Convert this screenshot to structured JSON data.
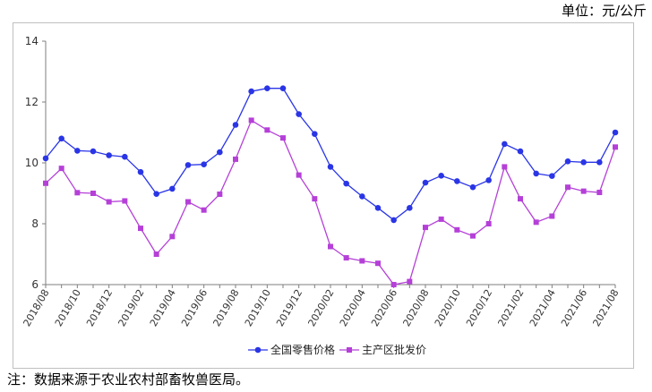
{
  "unit_label": "单位：元/公斤",
  "footnote": "注：数据来源于农业农村部畜牧兽医局。",
  "colors": {
    "retail": "#2a35e6",
    "wholesale": "#b540d8",
    "axis": "#7f7f7f"
  },
  "chart_data": {
    "type": "line",
    "title": "",
    "xlabel": "",
    "ylabel": "",
    "ylim": [
      6,
      14
    ],
    "yticks": [
      6,
      8,
      10,
      12,
      14
    ],
    "grid": false,
    "legend_position": "bottom",
    "x": [
      "2018/08",
      "2018/09",
      "2018/10",
      "2018/11",
      "2018/12",
      "2019/01",
      "2019/02",
      "2019/03",
      "2019/04",
      "2019/05",
      "2019/06",
      "2019/07",
      "2019/08",
      "2019/09",
      "2019/10",
      "2019/11",
      "2019/12",
      "2020/01",
      "2020/02",
      "2020/03",
      "2020/04",
      "2020/05",
      "2020/06",
      "2020/07",
      "2020/08",
      "2020/09",
      "2020/10",
      "2020/11",
      "2020/12",
      "2021/01",
      "2021/02",
      "2021/03",
      "2021/04",
      "2021/05",
      "2021/06",
      "2021/07",
      "2021/08"
    ],
    "tick_labels": [
      "2018/08",
      "2018/10",
      "2018/12",
      "2019/02",
      "2019/04",
      "2019/06",
      "2019/08",
      "2019/10",
      "2019/12",
      "2020/02",
      "2020/04",
      "2020/06",
      "2020/08",
      "2020/10",
      "2020/12",
      "2021/02",
      "2021/04",
      "2021/06",
      "2021/08"
    ],
    "series": [
      {
        "name": "全国零售价格",
        "color": "#2a35e6",
        "marker": "circle",
        "values": [
          10.15,
          10.8,
          10.4,
          10.38,
          10.25,
          10.2,
          9.7,
          8.98,
          9.15,
          9.93,
          9.95,
          10.35,
          11.25,
          12.35,
          12.45,
          12.45,
          11.6,
          10.95,
          9.87,
          9.32,
          8.9,
          8.52,
          8.12,
          8.52,
          9.35,
          9.58,
          9.4,
          9.2,
          9.43,
          10.62,
          10.38,
          9.65,
          9.57,
          10.05,
          10.02,
          10.02,
          11.0
        ]
      },
      {
        "name": "主产区批发价",
        "color": "#b540d8",
        "marker": "square",
        "values": [
          9.33,
          9.82,
          9.02,
          9.0,
          8.72,
          8.75,
          7.85,
          7.0,
          7.58,
          8.72,
          8.45,
          8.97,
          10.12,
          11.4,
          11.08,
          10.82,
          9.6,
          8.82,
          7.25,
          6.88,
          6.78,
          6.7,
          6.0,
          6.1,
          7.88,
          8.15,
          7.8,
          7.6,
          8.0,
          9.87,
          8.82,
          8.05,
          8.25,
          9.2,
          9.07,
          9.03,
          10.52
        ]
      }
    ]
  }
}
